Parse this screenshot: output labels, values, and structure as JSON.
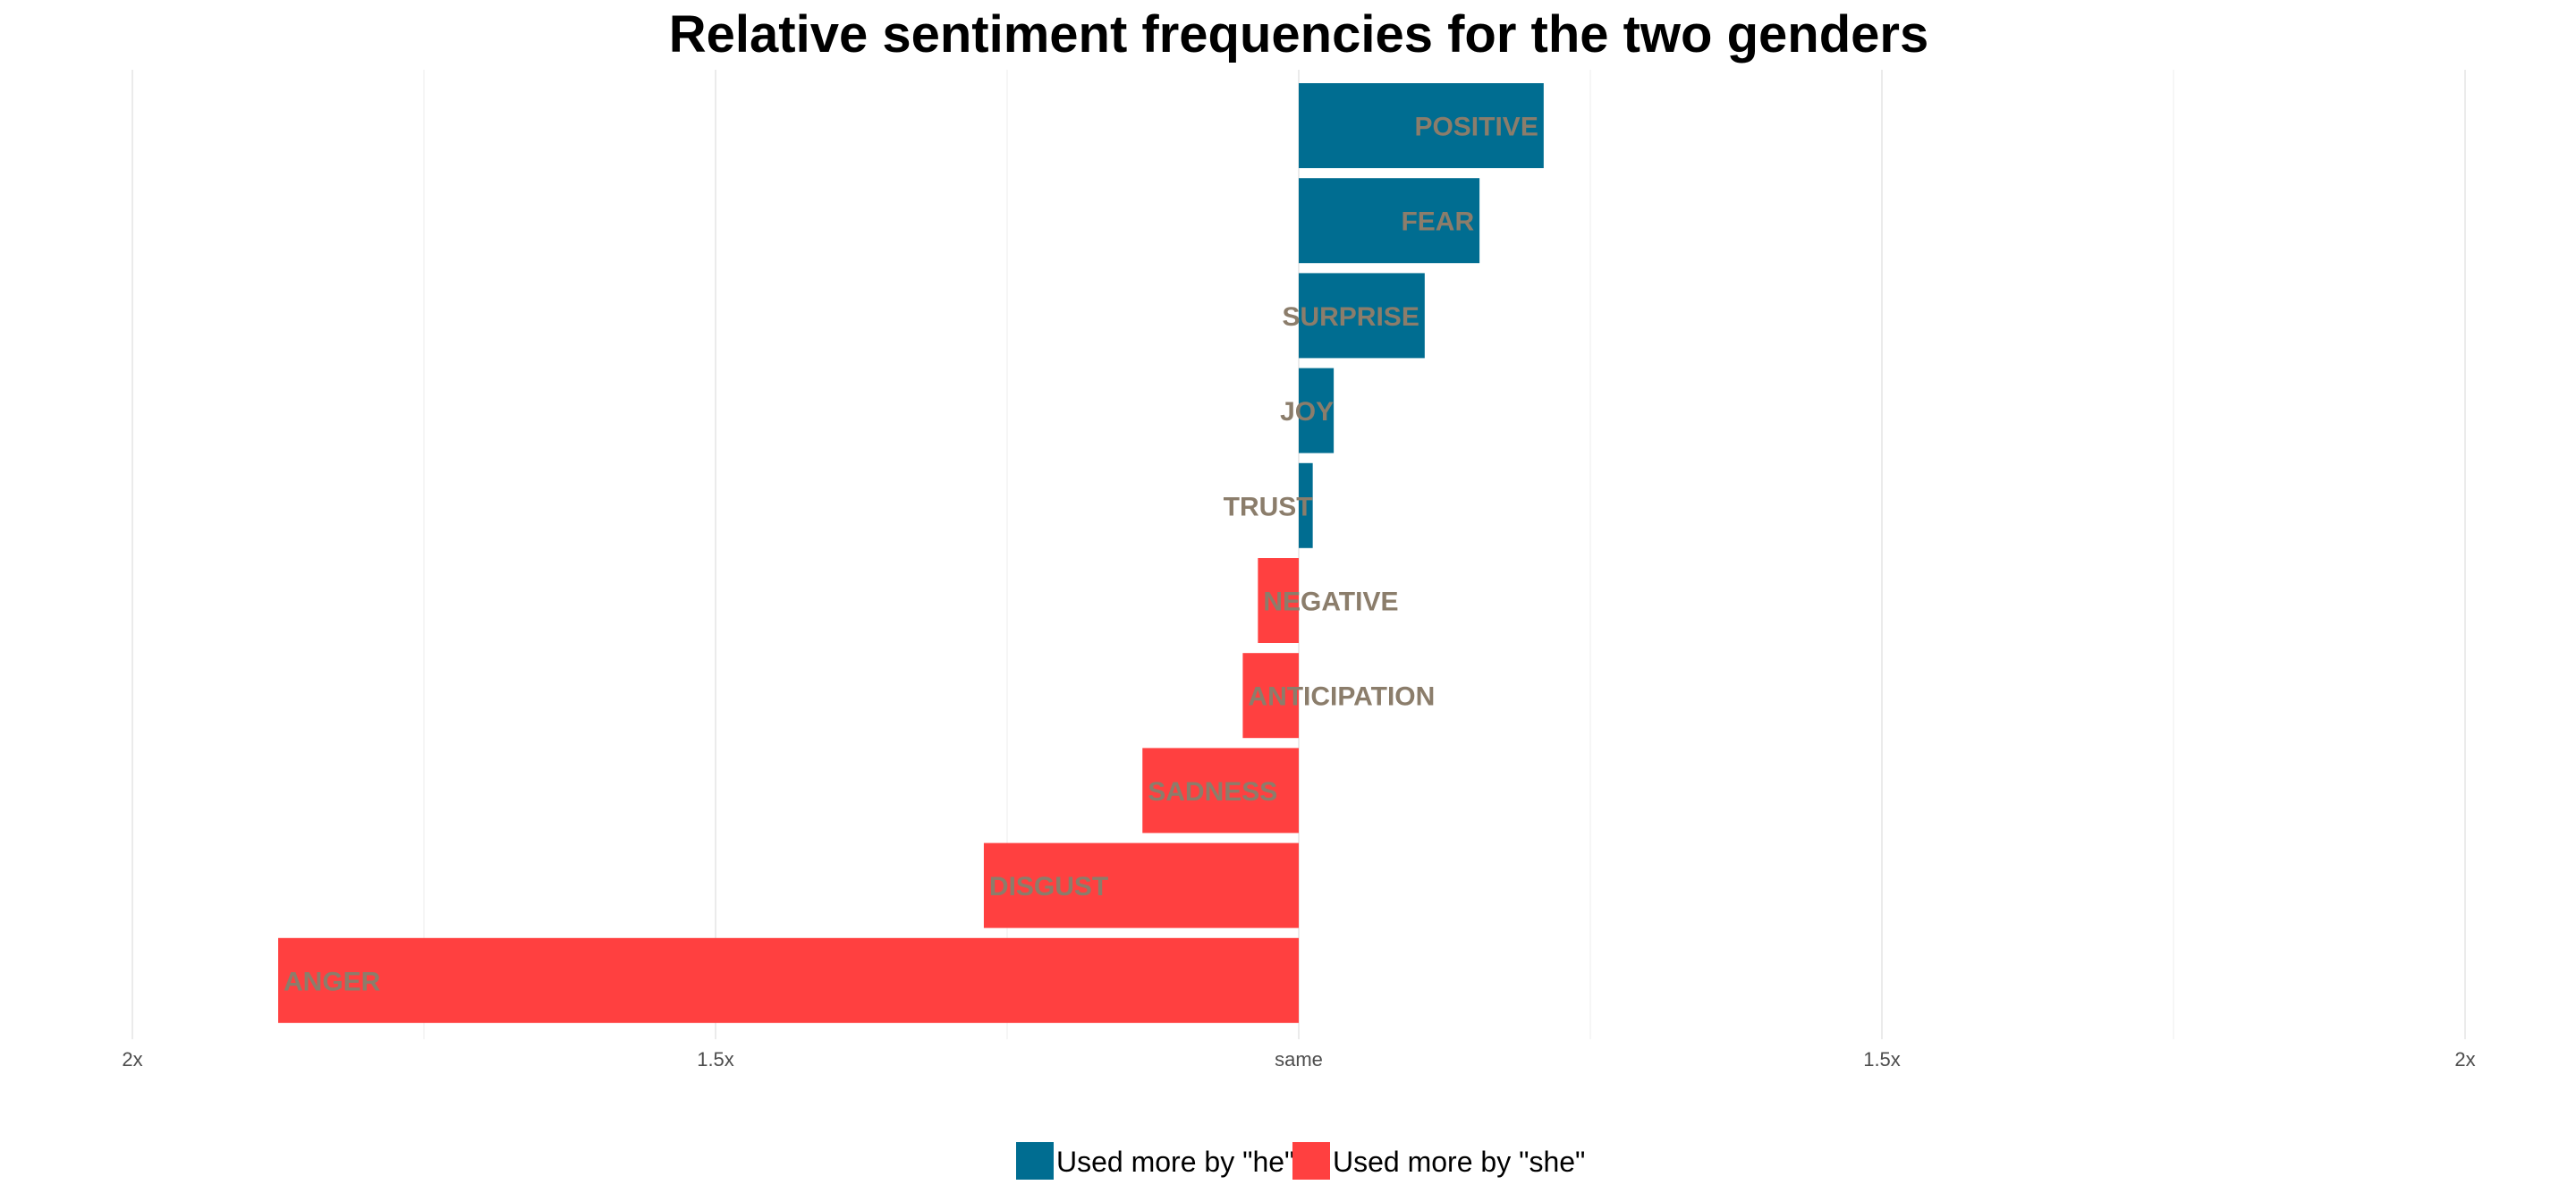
{
  "chart_data": {
    "type": "bar",
    "orientation": "horizontal",
    "title": "Relative sentiment frequencies for the two genders",
    "xlabel": "",
    "ylabel": "",
    "x_axis": {
      "ticks": [
        -2,
        -1.5,
        1,
        1.5,
        2
      ],
      "tick_labels": [
        "2x",
        "1.5x",
        "same",
        "1.5x",
        "2x"
      ],
      "note": "ratio scale centered at same; left = used more by she, right = used more by he",
      "xlim": [
        -2,
        2
      ]
    },
    "grid": true,
    "legend_position": "bottom",
    "categories": [
      "POSITIVE",
      "FEAR",
      "SURPRISE",
      "JOY",
      "TRUST",
      "NEGATIVE",
      "ANTICIPATION",
      "SADNESS",
      "DISGUST",
      "ANGER"
    ],
    "series": [
      {
        "name": "Used more by \"he\"",
        "color": "#006d91",
        "values": [
          1.21,
          1.155,
          1.108,
          1.03,
          1.012,
          null,
          null,
          null,
          null,
          null
        ]
      },
      {
        "name": "Used more by \"she\"",
        "color": "#ff4040",
        "values": [
          null,
          null,
          null,
          null,
          null,
          1.035,
          1.048,
          1.134,
          1.27,
          1.875
        ]
      }
    ],
    "label_color": "#8b7d6b"
  }
}
